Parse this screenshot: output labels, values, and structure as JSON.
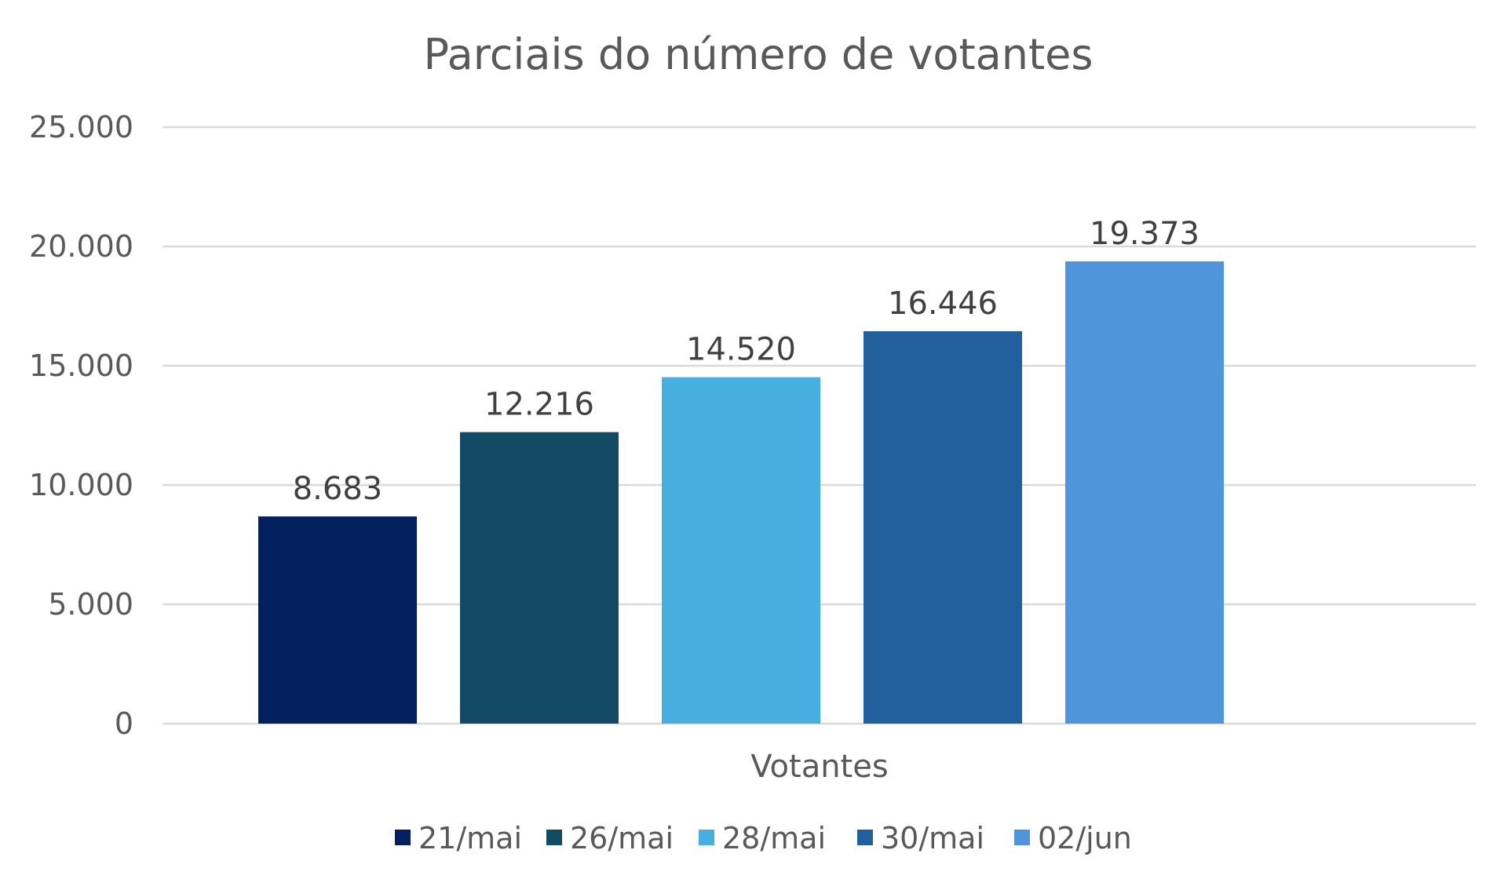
{
  "chart_data": {
    "type": "bar",
    "title": "Parciais do número de votantes",
    "xlabel": "",
    "ylabel": "",
    "categories": [
      "Votantes"
    ],
    "series": [
      {
        "name": "21/mai",
        "values": [
          8683
        ],
        "label": "8.683",
        "color": "#02205e"
      },
      {
        "name": "26/mai",
        "values": [
          12216
        ],
        "label": "12.216",
        "color": "#124a63"
      },
      {
        "name": "28/mai",
        "values": [
          14520
        ],
        "label": "14.520",
        "color": "#47afdf"
      },
      {
        "name": "30/mai",
        "values": [
          16446
        ],
        "label": "16.446",
        "color": "#21609c"
      },
      {
        "name": "02/jun",
        "values": [
          19373
        ],
        "label": "19.373",
        "color": "#5095d9"
      }
    ],
    "ylim": [
      0,
      25000
    ],
    "yticks": [
      0,
      5000,
      10000,
      15000,
      20000,
      25000
    ],
    "ytick_labels": [
      "0",
      "5.000",
      "10.000",
      "15.000",
      "20.000",
      "25.000"
    ],
    "grid": true,
    "legend_position": "bottom"
  }
}
